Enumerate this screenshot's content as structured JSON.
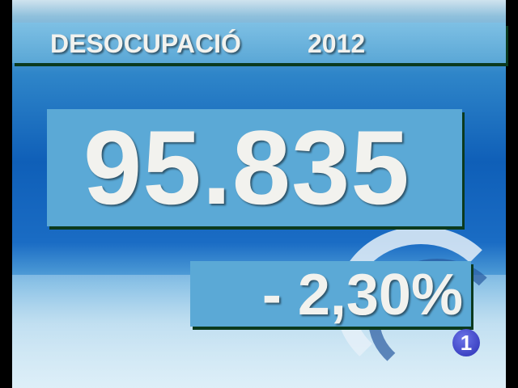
{
  "header": {
    "title": "DESOCUPACIÓ",
    "year": "2012"
  },
  "main": {
    "value": "95.835",
    "change": "- 2,30%"
  },
  "channel_logo": {
    "label": "1",
    "color": "#2a2fb4"
  },
  "colors": {
    "panel": "#5ba9d6",
    "text": "#f2f2ee",
    "shadow": "#0b3a1e"
  }
}
